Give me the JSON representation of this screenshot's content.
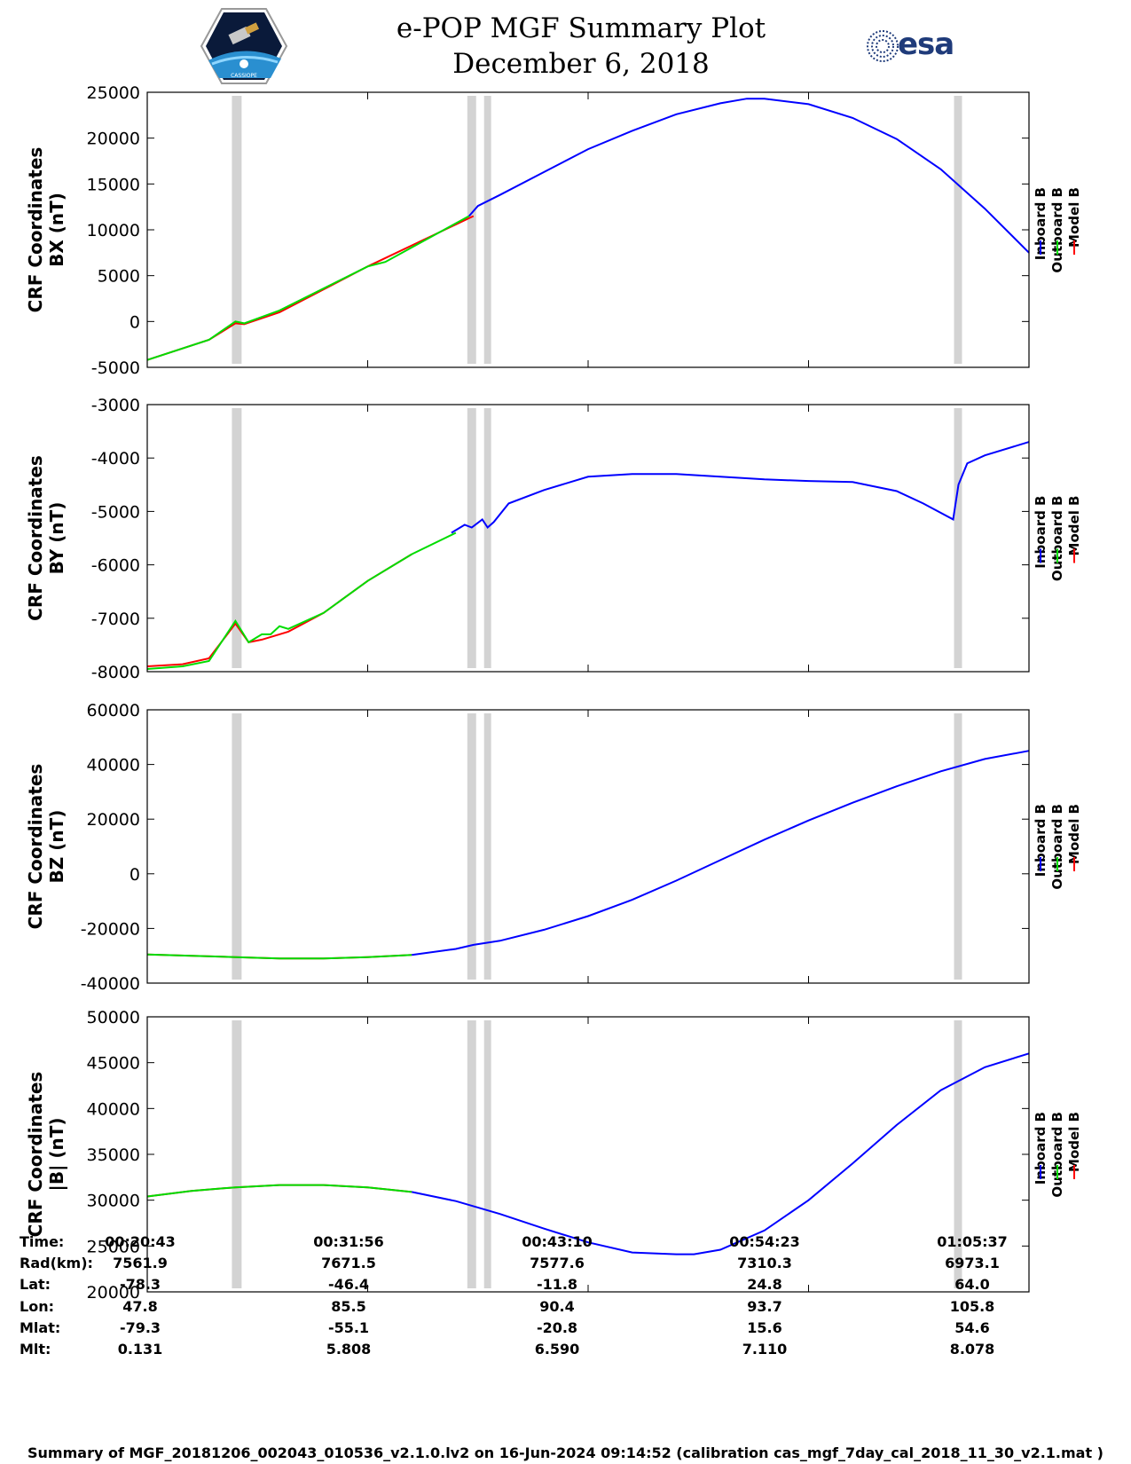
{
  "header": {
    "title": "e-POP MGF Summary Plot",
    "date": "December 6, 2018",
    "logo_left": "CASSIOPE",
    "logo_right": "esa",
    "logo_left_icon": "satellite-logo-icon",
    "logo_right_icon": "esa-logo-icon"
  },
  "legend": {
    "inboard": "Inboard B",
    "outboard": "Outboard B",
    "model": "Model B",
    "colors": {
      "inboard": "#0000ff",
      "outboard": "#00dd00",
      "model": "#ff0000"
    }
  },
  "chart_data": [
    {
      "type": "line",
      "ylabel_line1": "CRF Coordinates",
      "ylabel_line2": "BX (nT)",
      "ylim": [
        -5000,
        25000
      ],
      "yticks": [
        25000,
        20000,
        15000,
        10000,
        5000,
        0,
        -5000
      ],
      "xlim": [
        0,
        100
      ],
      "gaps": [
        [
          9.6,
          10.7
        ],
        [
          36.3,
          37.3
        ],
        [
          38.2,
          39.0
        ],
        [
          91.5,
          92.4
        ]
      ],
      "series": [
        {
          "name": "Model B",
          "color": "#ff0000",
          "x": [
            0,
            7,
            10,
            11,
            15,
            25,
            37
          ],
          "y": [
            -4200,
            -2000,
            -200,
            -300,
            1000,
            6000,
            11500
          ]
        },
        {
          "name": "Outboard B",
          "color": "#00dd00",
          "x": [
            0,
            7,
            10,
            11,
            15,
            25,
            27,
            36.5
          ],
          "y": [
            -4200,
            -2000,
            0,
            -200,
            1200,
            6000,
            6500,
            11500
          ]
        },
        {
          "name": "Inboard B",
          "color": "#0000ff",
          "x": [
            36.5,
            37.5,
            40,
            45,
            50,
            55,
            60,
            65,
            68,
            70,
            75,
            80,
            85,
            90,
            95,
            100
          ],
          "y": [
            11500,
            12600,
            13800,
            16300,
            18800,
            20800,
            22600,
            23800,
            24300,
            24300,
            23700,
            22200,
            19900,
            16600,
            12300,
            7500
          ]
        }
      ]
    },
    {
      "type": "line",
      "ylabel_line1": "CRF Coordinates",
      "ylabel_line2": "BY (nT)",
      "ylim": [
        -8000,
        -3000
      ],
      "yticks": [
        -3000,
        -4000,
        -5000,
        -6000,
        -7000,
        -8000
      ],
      "xlim": [
        0,
        100
      ],
      "gaps": [
        [
          9.6,
          10.7
        ],
        [
          36.3,
          37.3
        ],
        [
          38.2,
          39.0
        ],
        [
          91.5,
          92.4
        ]
      ],
      "series": [
        {
          "name": "Model B",
          "color": "#ff0000",
          "x": [
            0,
            4,
            7,
            10,
            11.5,
            13,
            16,
            20,
            25,
            30
          ],
          "y": [
            -7900,
            -7860,
            -7750,
            -7100,
            -7450,
            -7400,
            -7250,
            -6900,
            -6300,
            -5800
          ]
        },
        {
          "name": "Outboard B",
          "color": "#00dd00",
          "x": [
            0,
            4,
            7,
            10,
            11.5,
            13,
            14,
            15,
            16,
            18,
            20,
            25,
            30,
            35
          ],
          "y": [
            -7950,
            -7900,
            -7800,
            -7050,
            -7450,
            -7300,
            -7300,
            -7150,
            -7200,
            -7050,
            -6900,
            -6300,
            -5800,
            -5400
          ]
        },
        {
          "name": "Inboard B",
          "color": "#0000ff",
          "x": [
            34.5,
            36,
            36.8,
            38,
            38.6,
            39.3,
            41,
            45,
            50,
            55,
            60,
            65,
            70,
            75,
            80,
            85,
            88,
            91.4,
            92,
            93,
            95,
            100
          ],
          "y": [
            -5400,
            -5250,
            -5300,
            -5150,
            -5300,
            -5200,
            -4850,
            -4600,
            -4350,
            -4300,
            -4300,
            -4350,
            -4400,
            -4430,
            -4450,
            -4620,
            -4850,
            -5150,
            -4500,
            -4100,
            -3950,
            -3700
          ]
        }
      ]
    },
    {
      "type": "line",
      "ylabel_line1": "CRF Coordinates",
      "ylabel_line2": "BZ (nT)",
      "ylim": [
        -40000,
        60000
      ],
      "yticks": [
        60000,
        40000,
        20000,
        0,
        -20000,
        -40000
      ],
      "xlim": [
        0,
        100
      ],
      "gaps": [
        [
          9.6,
          10.7
        ],
        [
          36.3,
          37.3
        ],
        [
          38.2,
          39.0
        ],
        [
          91.5,
          92.4
        ]
      ],
      "series": [
        {
          "name": "Model B",
          "color": "#ff0000",
          "x": [
            0,
            10,
            15,
            20,
            25,
            30
          ],
          "y": [
            -29500,
            -30500,
            -31000,
            -31000,
            -30500,
            -29700
          ]
        },
        {
          "name": "Outboard B",
          "color": "#00dd00",
          "x": [
            0,
            10,
            15,
            20,
            25,
            30
          ],
          "y": [
            -29500,
            -30500,
            -31000,
            -31000,
            -30500,
            -29700
          ]
        },
        {
          "name": "Inboard B",
          "color": "#0000ff",
          "x": [
            30,
            35,
            37,
            40,
            45,
            50,
            55,
            60,
            65,
            70,
            75,
            80,
            85,
            90,
            95,
            100
          ],
          "y": [
            -29700,
            -27500,
            -26000,
            -24500,
            -20500,
            -15500,
            -9500,
            -2500,
            5000,
            12500,
            19500,
            26000,
            32000,
            37500,
            42000,
            45000
          ]
        }
      ]
    },
    {
      "type": "line",
      "ylabel_line1": "CRF Coordinates",
      "ylabel_line2": "|B| (nT)",
      "ylim": [
        20000,
        50000
      ],
      "yticks": [
        50000,
        45000,
        40000,
        35000,
        30000,
        25000,
        20000
      ],
      "xlim": [
        0,
        100
      ],
      "gaps": [
        [
          9.6,
          10.7
        ],
        [
          36.3,
          37.3
        ],
        [
          38.2,
          39.0
        ],
        [
          91.5,
          92.4
        ]
      ],
      "series": [
        {
          "name": "Model B",
          "color": "#ff0000",
          "x": [
            0,
            5,
            10,
            15,
            20,
            25,
            30
          ],
          "y": [
            30400,
            31000,
            31400,
            31650,
            31650,
            31400,
            30900
          ]
        },
        {
          "name": "Outboard B",
          "color": "#00dd00",
          "x": [
            0,
            5,
            10,
            15,
            20,
            25,
            30
          ],
          "y": [
            30400,
            31000,
            31400,
            31650,
            31650,
            31400,
            30900
          ]
        },
        {
          "name": "Inboard B",
          "color": "#0000ff",
          "x": [
            30,
            35,
            40,
            45,
            50,
            55,
            60,
            62,
            65,
            70,
            75,
            80,
            85,
            90,
            95,
            100
          ],
          "y": [
            30900,
            29900,
            28500,
            26900,
            25400,
            24300,
            24100,
            24100,
            24600,
            26700,
            30000,
            34000,
            38200,
            42000,
            44500,
            46000
          ]
        }
      ]
    }
  ],
  "info": {
    "labels": [
      "Time:",
      "Rad(km):",
      "Lat:",
      "Lon:",
      "Mlat:",
      "Mlt:"
    ],
    "columns": [
      {
        "time": "00:20:43",
        "rad": "7561.9",
        "lat": "-78.3",
        "lon": "47.8",
        "mlat": "-79.3",
        "mlt": "0.131"
      },
      {
        "time": "00:31:56",
        "rad": "7671.5",
        "lat": "-46.4",
        "lon": "85.5",
        "mlat": "-55.1",
        "mlt": "5.808"
      },
      {
        "time": "00:43:10",
        "rad": "7577.6",
        "lat": "-11.8",
        "lon": "90.4",
        "mlat": "-20.8",
        "mlt": "6.590"
      },
      {
        "time": "00:54:23",
        "rad": "7310.3",
        "lat": "24.8",
        "lon": "93.7",
        "mlat": "15.6",
        "mlt": "7.110"
      },
      {
        "time": "01:05:37",
        "rad": "6973.1",
        "lat": "64.0",
        "lon": "105.8",
        "mlat": "54.6",
        "mlt": "8.078"
      }
    ]
  },
  "footer": "Summary of MGF_20181206_002043_010536_v2.1.0.lv2 on 16-Jun-2024 09:14:52 (calibration cas_mgf_7day_cal_2018_11_30_v2.1.mat )"
}
